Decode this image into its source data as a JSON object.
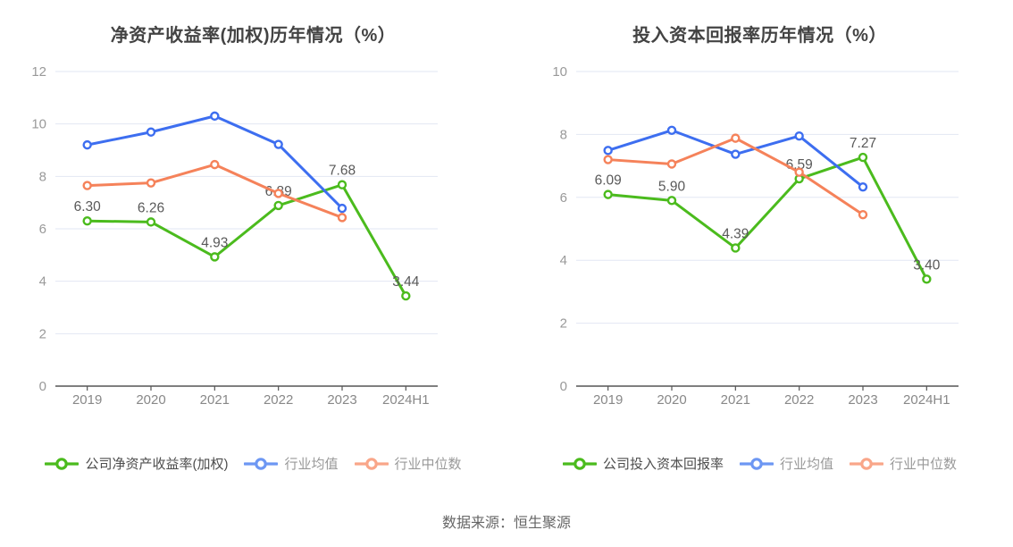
{
  "source_note": "数据来源：恒生聚源",
  "colors": {
    "company": "#4bbb1d",
    "mean": "#3d6ef0",
    "median": "#f5825a",
    "legend_mean_icon": "#6d97f3",
    "legend_median_icon": "#f9a689",
    "grid": "#e2e7f3",
    "axis": "#555555",
    "ytick_text": "#999999",
    "xtick_text": "#888888",
    "datalabel_text": "#595959",
    "title_text": "#434343",
    "legend_primary_text": "#4d4d4d",
    "legend_muted_text": "#999999",
    "source_text": "#666666",
    "background": "#ffffff"
  },
  "chart_data": [
    {
      "type": "line",
      "title": "净资产收益率(加权)历年情况（%）",
      "categories": [
        "2019",
        "2020",
        "2021",
        "2022",
        "2023",
        "2024H1"
      ],
      "ylim": [
        0,
        12
      ],
      "ytick_step": 2,
      "grid": true,
      "legend_position": "bottom",
      "series": [
        {
          "name": "公司净资产收益率(加权)",
          "role": "company",
          "values": [
            6.3,
            6.26,
            4.93,
            6.89,
            7.68,
            3.44
          ],
          "point_labels": [
            "6.30",
            "6.26",
            "4.93",
            "6.89",
            "7.68",
            "3.44"
          ]
        },
        {
          "name": "行业均值",
          "role": "mean",
          "values": [
            9.2,
            9.69,
            10.3,
            9.22,
            6.78,
            null
          ],
          "point_labels": null
        },
        {
          "name": "行业中位数",
          "role": "median",
          "values": [
            7.65,
            7.75,
            8.45,
            7.35,
            6.43,
            null
          ],
          "point_labels": null
        }
      ]
    },
    {
      "type": "line",
      "title": "投入资本回报率历年情况（%）",
      "categories": [
        "2019",
        "2020",
        "2021",
        "2022",
        "2023",
        "2024H1"
      ],
      "ylim": [
        0,
        10
      ],
      "ytick_step": 2,
      "grid": true,
      "legend_position": "bottom",
      "series": [
        {
          "name": "公司投入资本回报率",
          "role": "company",
          "values": [
            6.09,
            5.9,
            4.39,
            6.59,
            7.27,
            3.4
          ],
          "point_labels": [
            "6.09",
            "5.90",
            "4.39",
            "6.59",
            "7.27",
            "3.40"
          ]
        },
        {
          "name": "行业均值",
          "role": "mean",
          "values": [
            7.49,
            8.13,
            7.37,
            7.95,
            6.33,
            null
          ],
          "point_labels": null
        },
        {
          "name": "行业中位数",
          "role": "median",
          "values": [
            7.2,
            7.06,
            7.88,
            6.8,
            5.45,
            null
          ],
          "point_labels": null
        }
      ]
    }
  ]
}
